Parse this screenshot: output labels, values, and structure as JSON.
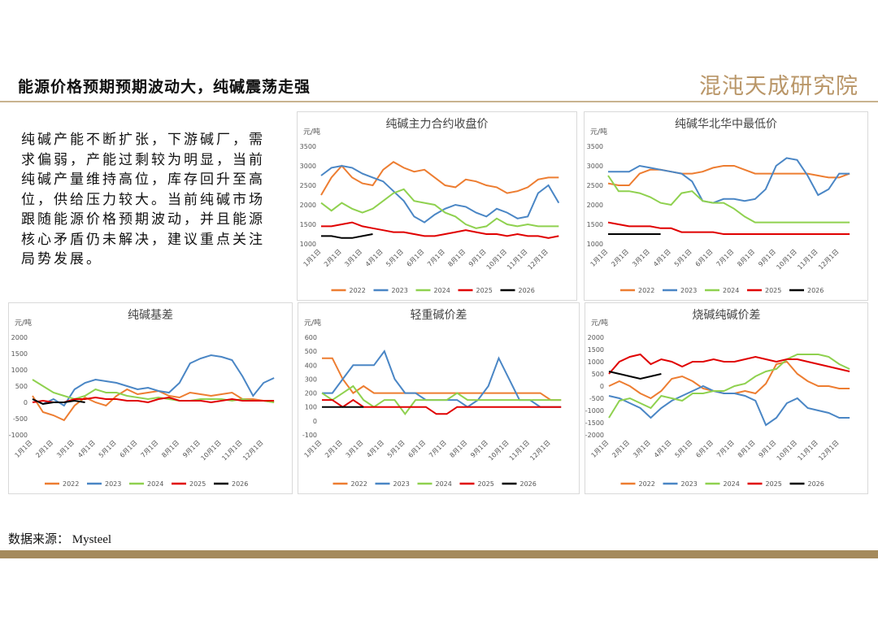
{
  "header": {
    "title": "能源价格预期预期波动大，纯碱震荡走强",
    "logo": "混沌天成研究院"
  },
  "body_text": "纯碱产能不断扩张，下游碱厂，需求偏弱，产能过剩较为明显，当前纯碱产量维持高位，库存回升至高位，供给压力较大。当前纯碱市场跟随能源价格预期波动，并且能源核心矛盾仍未解决，建议重点关注局势发展。",
  "footer": {
    "source": "数据来源： Mysteel"
  },
  "chart_data": [
    {
      "type": "line",
      "title": "纯碱主力合约收盘价",
      "y_unit": "元/吨",
      "grid": false,
      "legend": "bottom",
      "categories": [
        "1月1日",
        null,
        "2月1日",
        null,
        "3月1日",
        null,
        "4月1日",
        null,
        "5月1日",
        null,
        "6月1日",
        null,
        "7月1日",
        null,
        "8月1日",
        null,
        "9月1日",
        null,
        "10月1日",
        null,
        "11月1日",
        null,
        "12月1日",
        null
      ],
      "ylim": [
        1000,
        3500
      ],
      "yticks": [
        1000,
        1500,
        2000,
        2500,
        3000,
        3500
      ],
      "series": [
        {
          "name": "2022",
          "color": "#ed7d31",
          "values": [
            2250,
            2700,
            3000,
            2700,
            2550,
            2500,
            2900,
            3100,
            2950,
            2850,
            2900,
            2700,
            2500,
            2450,
            2650,
            2600,
            2500,
            2450,
            2300,
            2350,
            2450,
            2650,
            2700,
            2700
          ]
        },
        {
          "name": "2023",
          "color": "#4a86c5",
          "values": [
            2750,
            2950,
            3000,
            2950,
            2800,
            2700,
            2600,
            2350,
            2100,
            1700,
            1550,
            1750,
            1900,
            2000,
            1950,
            1800,
            1700,
            1900,
            1800,
            1650,
            1700,
            2300,
            2500,
            2050
          ]
        },
        {
          "name": "2024",
          "color": "#8fd14f",
          "values": [
            2050,
            1850,
            2050,
            1900,
            1800,
            1900,
            2100,
            2300,
            2400,
            2100,
            2050,
            2000,
            1800,
            1700,
            1500,
            1400,
            1450,
            1650,
            1500,
            1450,
            1500,
            1450,
            1450,
            1450
          ]
        },
        {
          "name": "2025",
          "color": "#e00000",
          "values": [
            1450,
            1450,
            1500,
            1550,
            1450,
            1400,
            1350,
            1300,
            1300,
            1250,
            1200,
            1200,
            1250,
            1300,
            1350,
            1300,
            1250,
            1250,
            1200,
            1250,
            1200,
            1200,
            1150,
            1200
          ]
        },
        {
          "name": "2026",
          "color": "#000000",
          "values": [
            1200,
            1200,
            1150,
            1150,
            1200,
            1250,
            null,
            null,
            null,
            null,
            null,
            null,
            null,
            null,
            null,
            null,
            null,
            null,
            null,
            null,
            null,
            null,
            null,
            null
          ]
        }
      ]
    },
    {
      "type": "line",
      "title": "纯碱华北华中最低价",
      "y_unit": "元/吨",
      "grid": false,
      "legend": "bottom",
      "categories": [
        "1月1日",
        null,
        "2月1日",
        null,
        "3月1日",
        null,
        "4月1日",
        null,
        "5月1日",
        null,
        "6月1日",
        null,
        "7月1日",
        null,
        "8月1日",
        null,
        "9月1日",
        null,
        "10月1日",
        null,
        "11月1日",
        null,
        "12月1日",
        null
      ],
      "ylim": [
        1000,
        3500
      ],
      "yticks": [
        1000,
        1500,
        2000,
        2500,
        3000,
        3500
      ],
      "series": [
        {
          "name": "2022",
          "color": "#ed7d31",
          "values": [
            2550,
            2500,
            2500,
            2800,
            2900,
            2900,
            2850,
            2800,
            2800,
            2850,
            2950,
            3000,
            3000,
            2900,
            2800,
            2800,
            2800,
            2800,
            2800,
            2800,
            2750,
            2700,
            2700,
            2800
          ]
        },
        {
          "name": "2023",
          "color": "#4a86c5",
          "values": [
            2850,
            2850,
            2850,
            3000,
            2950,
            2900,
            2850,
            2800,
            2600,
            2100,
            2050,
            2150,
            2150,
            2100,
            2150,
            2400,
            3000,
            3200,
            3150,
            2750,
            2250,
            2400,
            2800,
            2800
          ]
        },
        {
          "name": "2024",
          "color": "#8fd14f",
          "values": [
            2750,
            2350,
            2350,
            2300,
            2200,
            2050,
            2000,
            2300,
            2350,
            2100,
            2050,
            2050,
            1900,
            1700,
            1550,
            1550,
            1550,
            1550,
            1550,
            1550,
            1550,
            1550,
            1550,
            1550
          ]
        },
        {
          "name": "2025",
          "color": "#e00000",
          "values": [
            1550,
            1500,
            1450,
            1450,
            1450,
            1400,
            1400,
            1300,
            1300,
            1300,
            1300,
            1250,
            1250,
            1250,
            1250,
            1250,
            1250,
            1250,
            1250,
            1250,
            1250,
            1250,
            1250,
            1250
          ]
        },
        {
          "name": "2026",
          "color": "#000000",
          "values": [
            1250,
            1250,
            1250,
            1250,
            1250,
            1250,
            null,
            null,
            null,
            null,
            null,
            null,
            null,
            null,
            null,
            null,
            null,
            null,
            null,
            null,
            null,
            null,
            null,
            null
          ]
        }
      ]
    },
    {
      "type": "line",
      "title": "纯碱基差",
      "y_unit": "元/吨",
      "grid": false,
      "legend": "bottom",
      "categories": [
        "1月1日",
        null,
        "2月1日",
        null,
        "3月1日",
        null,
        "4月1日",
        null,
        "5月1日",
        null,
        "6月1日",
        null,
        "7月1日",
        null,
        "8月1日",
        null,
        "9月1日",
        null,
        "10月1日",
        null,
        "11月1日",
        null,
        "12月1日",
        null
      ],
      "ylim": [
        -1000,
        2000
      ],
      "yticks": [
        -1000,
        -500,
        0,
        500,
        1000,
        1500,
        2000
      ],
      "series": [
        {
          "name": "2022",
          "color": "#ed7d31",
          "values": [
            200,
            -300,
            -400,
            -550,
            -100,
            150,
            0,
            -100,
            200,
            400,
            250,
            300,
            350,
            200,
            150,
            300,
            250,
            200,
            250,
            300,
            100,
            100,
            50,
            0
          ]
        },
        {
          "name": "2023",
          "color": "#4a86c5",
          "values": [
            100,
            -50,
            100,
            -100,
            400,
            600,
            700,
            650,
            600,
            500,
            400,
            450,
            350,
            300,
            600,
            1200,
            1350,
            1450,
            1400,
            1300,
            800,
            200,
            600,
            750
          ]
        },
        {
          "name": "2024",
          "color": "#8fd14f",
          "values": [
            700,
            500,
            300,
            200,
            100,
            200,
            400,
            300,
            300,
            200,
            150,
            100,
            150,
            100,
            50,
            50,
            100,
            100,
            100,
            50,
            100,
            50,
            50,
            0
          ]
        },
        {
          "name": "2025",
          "color": "#e00000",
          "values": [
            0,
            50,
            0,
            0,
            100,
            100,
            150,
            100,
            100,
            50,
            50,
            0,
            100,
            150,
            50,
            50,
            50,
            0,
            50,
            100,
            50,
            50,
            50,
            50
          ]
        },
        {
          "name": "2026",
          "color": "#000000",
          "values": [
            100,
            -50,
            0,
            0,
            50,
            0,
            null,
            null,
            null,
            null,
            null,
            null,
            null,
            null,
            null,
            null,
            null,
            null,
            null,
            null,
            null,
            null,
            null,
            null
          ]
        }
      ]
    },
    {
      "type": "line",
      "title": "轻重碱价差",
      "y_unit": "元/吨",
      "grid": false,
      "legend": "bottom",
      "categories": [
        "1月1日",
        null,
        "2月1日",
        null,
        "3月1日",
        null,
        "4月1日",
        null,
        "5月1日",
        null,
        "6月1日",
        null,
        "7月1日",
        null,
        "8月1日",
        null,
        "9月1日",
        null,
        "10月1日",
        null,
        "11月1日",
        null,
        "12月1日",
        null
      ],
      "ylim": [
        -100,
        600
      ],
      "yticks": [
        -100,
        0,
        100,
        200,
        300,
        400,
        500,
        600
      ],
      "series": [
        {
          "name": "2022",
          "color": "#ed7d31",
          "values": [
            450,
            450,
            300,
            200,
            250,
            200,
            200,
            200,
            200,
            200,
            200,
            200,
            200,
            200,
            200,
            200,
            200,
            200,
            200,
            200,
            200,
            200,
            150,
            150
          ]
        },
        {
          "name": "2023",
          "color": "#4a86c5",
          "values": [
            200,
            200,
            300,
            400,
            400,
            400,
            500,
            300,
            200,
            200,
            150,
            150,
            150,
            150,
            100,
            150,
            250,
            450,
            300,
            150,
            150,
            100,
            100,
            100
          ]
        },
        {
          "name": "2024",
          "color": "#8fd14f",
          "values": [
            200,
            150,
            200,
            250,
            150,
            100,
            150,
            150,
            50,
            150,
            150,
            150,
            150,
            200,
            150,
            150,
            150,
            150,
            150,
            150,
            150,
            150,
            150,
            150
          ]
        },
        {
          "name": "2025",
          "color": "#e00000",
          "values": [
            150,
            150,
            100,
            150,
            100,
            100,
            100,
            100,
            100,
            100,
            100,
            50,
            50,
            100,
            100,
            100,
            100,
            100,
            100,
            100,
            100,
            100,
            100,
            100
          ]
        },
        {
          "name": "2026",
          "color": "#000000",
          "values": [
            100,
            100,
            100,
            100,
            100,
            null,
            null,
            null,
            null,
            null,
            null,
            null,
            null,
            null,
            null,
            null,
            null,
            null,
            null,
            null,
            null,
            null,
            null,
            null
          ]
        }
      ]
    },
    {
      "type": "line",
      "title": "烧碱纯碱价差",
      "y_unit": "元/吨",
      "grid": false,
      "legend": "bottom",
      "categories": [
        "1月1日",
        null,
        "2月1日",
        null,
        "3月1日",
        null,
        "4月1日",
        null,
        "5月1日",
        null,
        "6月1日",
        null,
        "7月1日",
        null,
        "8月1日",
        null,
        "9月1日",
        null,
        "10月1日",
        null,
        "11月1日",
        null,
        "12月1日",
        null
      ],
      "ylim": [
        -2000,
        2000
      ],
      "yticks": [
        -2000,
        -1500,
        -1000,
        -500,
        0,
        500,
        1000,
        1500,
        2000
      ],
      "series": [
        {
          "name": "2022",
          "color": "#ed7d31",
          "values": [
            0,
            200,
            0,
            -300,
            -500,
            -200,
            300,
            400,
            200,
            -100,
            -200,
            -300,
            -300,
            -200,
            -300,
            100,
            900,
            1000,
            500,
            200,
            0,
            0,
            -100,
            -100
          ]
        },
        {
          "name": "2023",
          "color": "#4a86c5",
          "values": [
            -400,
            -500,
            -700,
            -900,
            -1300,
            -900,
            -600,
            -400,
            -200,
            0,
            -200,
            -300,
            -300,
            -400,
            -600,
            -1600,
            -1300,
            -700,
            -500,
            -900,
            -1000,
            -1100,
            -1300,
            -1300
          ]
        },
        {
          "name": "2024",
          "color": "#8fd14f",
          "values": [
            -1300,
            -600,
            -500,
            -700,
            -900,
            -400,
            -500,
            -600,
            -300,
            -300,
            -200,
            -200,
            0,
            100,
            400,
            600,
            700,
            1100,
            1300,
            1300,
            1300,
            1200,
            900,
            700
          ]
        },
        {
          "name": "2025",
          "color": "#e00000",
          "values": [
            500,
            1000,
            1200,
            1300,
            900,
            1100,
            1000,
            800,
            1000,
            1000,
            1100,
            1000,
            1000,
            1100,
            1200,
            1100,
            1000,
            1100,
            1100,
            1000,
            900,
            800,
            700,
            600
          ]
        },
        {
          "name": "2026",
          "color": "#000000",
          "values": [
            600,
            500,
            400,
            300,
            400,
            500,
            null,
            null,
            null,
            null,
            null,
            null,
            null,
            null,
            null,
            null,
            null,
            null,
            null,
            null,
            null,
            null,
            null,
            null
          ]
        }
      ]
    }
  ]
}
